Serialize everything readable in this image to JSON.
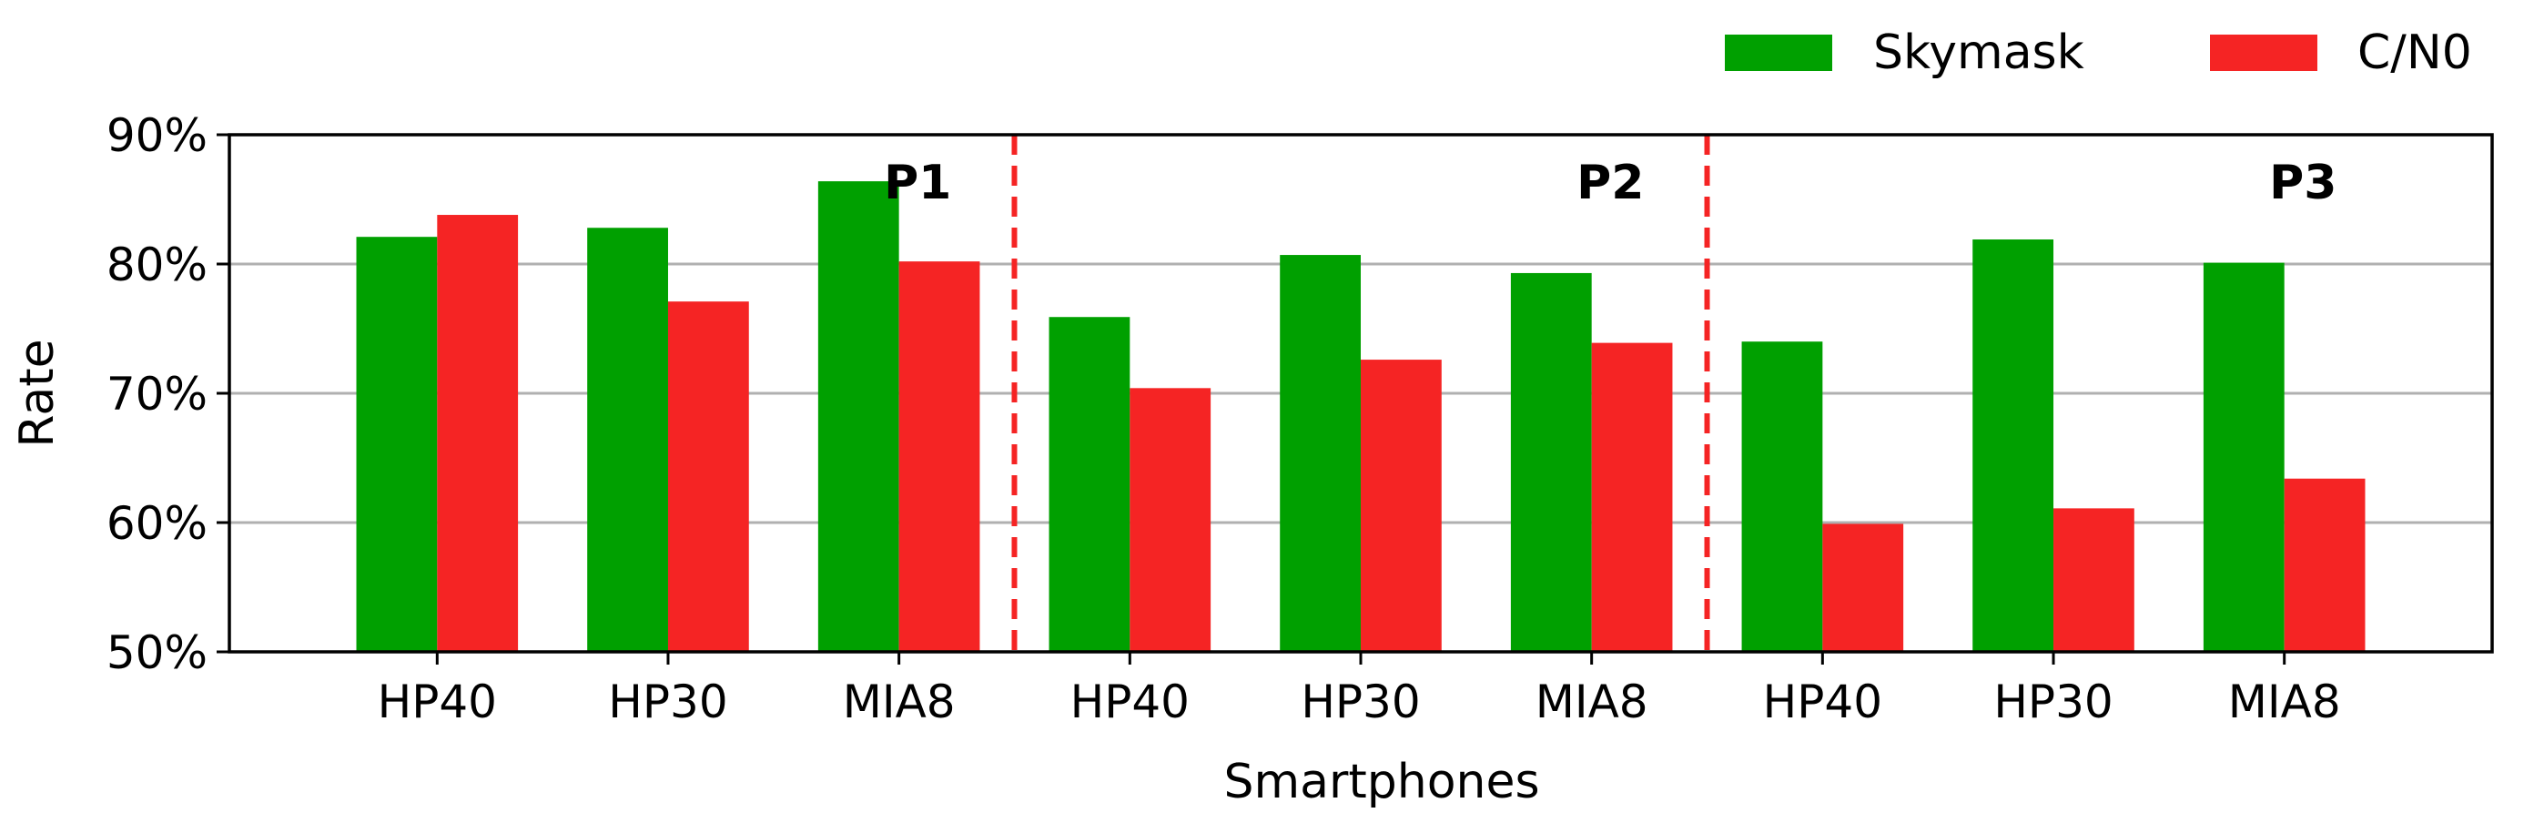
{
  "chart_data": {
    "type": "bar",
    "xlabel": "Smartphones",
    "ylabel": "Rate",
    "ylim": [
      50,
      90
    ],
    "yticks": [
      "50%",
      "60%",
      "70%",
      "80%",
      "90%"
    ],
    "ytick_values": [
      50,
      60,
      70,
      80,
      90
    ],
    "grid": true,
    "legend_placement": "top-right",
    "categories": [
      "HP40",
      "HP30",
      "MIA8",
      "HP40",
      "HP30",
      "MIA8",
      "HP40",
      "HP30",
      "MIA8"
    ],
    "groups": [
      "P1",
      "P2",
      "P3"
    ],
    "series": [
      {
        "name": "Skymask",
        "color": "#00a000",
        "values": [
          82.1,
          82.8,
          86.4,
          75.9,
          80.7,
          79.3,
          74.0,
          81.9,
          80.1
        ]
      },
      {
        "name": "C/N0",
        "color": "#f52424",
        "values": [
          83.8,
          77.1,
          80.2,
          70.4,
          72.6,
          73.9,
          59.9,
          61.1,
          63.4
        ]
      }
    ],
    "divider_color": "#f52424"
  }
}
